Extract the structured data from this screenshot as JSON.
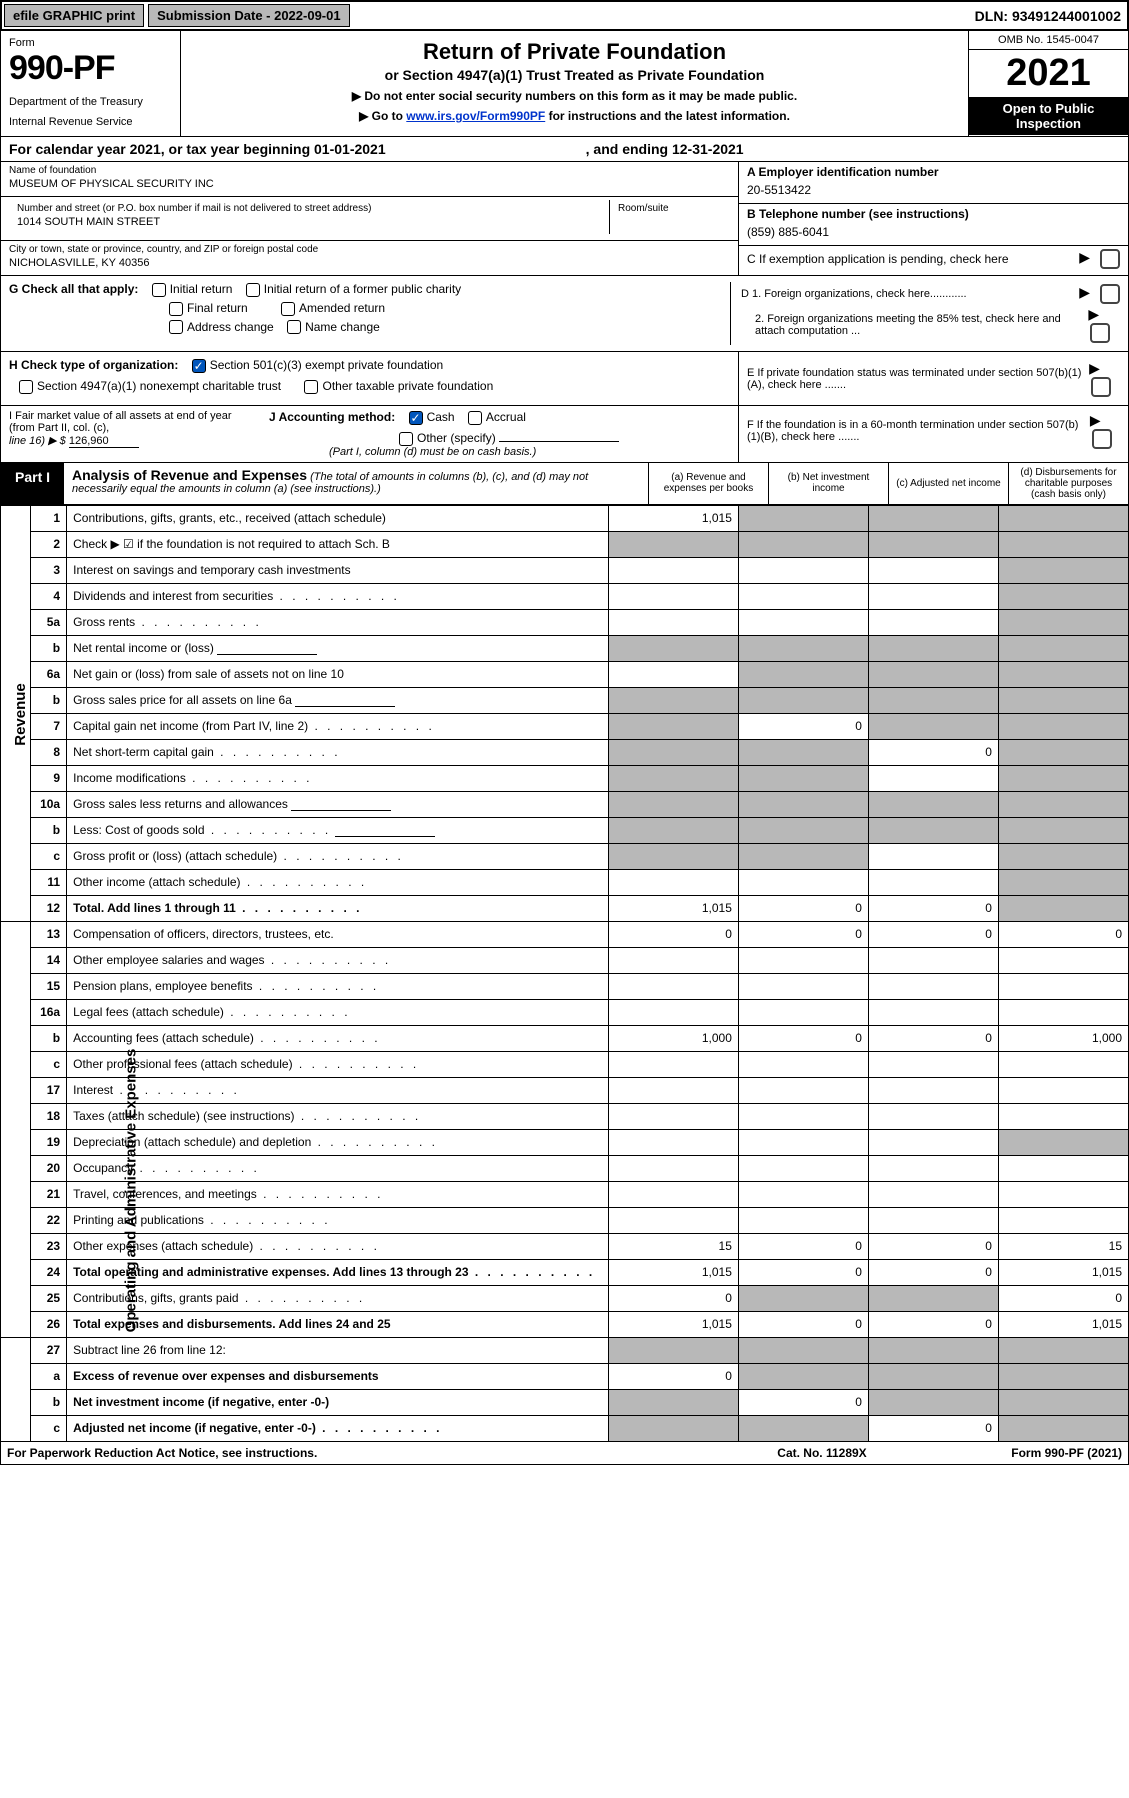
{
  "colors": {
    "black": "#000000",
    "white": "#ffffff",
    "gray_btn": "#b8b8b8",
    "link": "#0033cc",
    "check_blue": "#0055bb",
    "shaded": "#b8b8b8"
  },
  "topbar": {
    "efile": "efile GRAPHIC print",
    "submission_label": "Submission Date - 2022-09-01",
    "dln": "DLN: 93491244001002"
  },
  "header": {
    "form_word": "Form",
    "form_no": "990-PF",
    "dept1": "Department of the Treasury",
    "dept2": "Internal Revenue Service",
    "title": "Return of Private Foundation",
    "subtitle": "or Section 4947(a)(1) Trust Treated as Private Foundation",
    "instr1": "▶ Do not enter social security numbers on this form as it may be made public.",
    "instr2_pre": "▶ Go to ",
    "instr2_link": "www.irs.gov/Form990PF",
    "instr2_post": " for instructions and the latest information.",
    "omb": "OMB No. 1545-0047",
    "year": "2021",
    "open1": "Open to Public",
    "open2": "Inspection"
  },
  "tax_year": {
    "pre": "For calendar year 2021, or tax year beginning 01-01-2021",
    "mid": ", and ending 12-31-2021"
  },
  "entity": {
    "name_label": "Name of foundation",
    "name": "MUSEUM OF PHYSICAL SECURITY INC",
    "addr_label": "Number and street (or P.O. box number if mail is not delivered to street address)",
    "addr": "1014 SOUTH MAIN STREET",
    "room_label": "Room/suite",
    "city_label": "City or town, state or province, country, and ZIP or foreign postal code",
    "city": "NICHOLASVILLE, KY  40356",
    "a_label": "A Employer identification number",
    "a_val": "20-5513422",
    "b_label": "B Telephone number (see instructions)",
    "b_val": "(859) 885-6041",
    "c_label": "C If exemption application is pending, check here"
  },
  "g": {
    "label": "G Check all that apply:",
    "opts": [
      "Initial return",
      "Initial return of a former public charity",
      "Final return",
      "Amended return",
      "Address change",
      "Name change"
    ]
  },
  "d": {
    "d1": "D 1. Foreign organizations, check here............",
    "d2": "2. Foreign organizations meeting the 85% test, check here and attach computation ..."
  },
  "h": {
    "label": "H Check type of organization:",
    "opt1": "Section 501(c)(3) exempt private foundation",
    "opt2": "Section 4947(a)(1) nonexempt charitable trust",
    "opt3": "Other taxable private foundation"
  },
  "e": {
    "text": "E  If private foundation status was terminated under section 507(b)(1)(A), check here ......."
  },
  "i": {
    "label": "I Fair market value of all assets at end of year (from Part II, col. (c),",
    "line16": "line 16) ▶ $",
    "val": "126,960"
  },
  "j": {
    "label": "J Accounting method:",
    "cash": "Cash",
    "accrual": "Accrual",
    "other": "Other (specify)",
    "note": "(Part I, column (d) must be on cash basis.)"
  },
  "f": {
    "text": "F  If the foundation is in a 60-month termination under section 507(b)(1)(B), check here ......."
  },
  "part1": {
    "label": "Part I",
    "title": "Analysis of Revenue and Expenses",
    "note": " (The total of amounts in columns (b), (c), and (d) may not necessarily equal the amounts in column (a) (see instructions).)",
    "col_a": "(a)  Revenue and expenses per books",
    "col_b": "(b)  Net investment income",
    "col_c": "(c)  Adjusted net income",
    "col_d": "(d)  Disbursements for charitable purposes (cash basis only)"
  },
  "vlabels": {
    "revenue": "Revenue",
    "expenses": "Operating and Administrative Expenses"
  },
  "rows": [
    {
      "n": "1",
      "desc": "Contributions, gifts, grants, etc., received (attach schedule)",
      "a": "1,015",
      "b": "shade",
      "c": "shade",
      "d": "shade"
    },
    {
      "n": "2",
      "desc": "Check ▶ ☑ if the foundation is not required to attach Sch. B",
      "a": "shade",
      "b": "shade",
      "c": "shade",
      "d": "shade",
      "bold_not": true
    },
    {
      "n": "3",
      "desc": "Interest on savings and temporary cash investments",
      "a": "",
      "b": "",
      "c": "",
      "d": "shade"
    },
    {
      "n": "4",
      "desc": "Dividends and interest from securities",
      "a": "",
      "b": "",
      "c": "",
      "d": "shade",
      "dots": true
    },
    {
      "n": "5a",
      "desc": "Gross rents",
      "a": "",
      "b": "",
      "c": "",
      "d": "shade",
      "dots": true
    },
    {
      "n": "b",
      "desc": "Net rental income or (loss)",
      "a": "shade",
      "b": "shade",
      "c": "shade",
      "d": "shade",
      "inline_blank": true
    },
    {
      "n": "6a",
      "desc": "Net gain or (loss) from sale of assets not on line 10",
      "a": "",
      "b": "shade",
      "c": "shade",
      "d": "shade"
    },
    {
      "n": "b",
      "desc": "Gross sales price for all assets on line 6a",
      "a": "shade",
      "b": "shade",
      "c": "shade",
      "d": "shade",
      "inline_blank": true
    },
    {
      "n": "7",
      "desc": "Capital gain net income (from Part IV, line 2)",
      "a": "shade",
      "b": "0",
      "c": "shade",
      "d": "shade",
      "dots": true
    },
    {
      "n": "8",
      "desc": "Net short-term capital gain",
      "a": "shade",
      "b": "shade",
      "c": "0",
      "d": "shade",
      "dots": true
    },
    {
      "n": "9",
      "desc": "Income modifications",
      "a": "shade",
      "b": "shade",
      "c": "",
      "d": "shade",
      "dots": true
    },
    {
      "n": "10a",
      "desc": "Gross sales less returns and allowances",
      "a": "shade",
      "b": "shade",
      "c": "shade",
      "d": "shade",
      "inline_blank": true
    },
    {
      "n": "b",
      "desc": "Less: Cost of goods sold",
      "a": "shade",
      "b": "shade",
      "c": "shade",
      "d": "shade",
      "dots": true,
      "inline_blank": true
    },
    {
      "n": "c",
      "desc": "Gross profit or (loss) (attach schedule)",
      "a": "shade",
      "b": "shade",
      "c": "",
      "d": "shade",
      "dots": true
    },
    {
      "n": "11",
      "desc": "Other income (attach schedule)",
      "a": "",
      "b": "",
      "c": "",
      "d": "shade",
      "dots": true
    },
    {
      "n": "12",
      "desc": "Total. Add lines 1 through 11",
      "a": "1,015",
      "b": "0",
      "c": "0",
      "d": "shade",
      "bold": true,
      "dots": true
    },
    {
      "n": "13",
      "desc": "Compensation of officers, directors, trustees, etc.",
      "a": "0",
      "b": "0",
      "c": "0",
      "d": "0"
    },
    {
      "n": "14",
      "desc": "Other employee salaries and wages",
      "a": "",
      "b": "",
      "c": "",
      "d": "",
      "dots": true
    },
    {
      "n": "15",
      "desc": "Pension plans, employee benefits",
      "a": "",
      "b": "",
      "c": "",
      "d": "",
      "dots": true
    },
    {
      "n": "16a",
      "desc": "Legal fees (attach schedule)",
      "a": "",
      "b": "",
      "c": "",
      "d": "",
      "dots": true
    },
    {
      "n": "b",
      "desc": "Accounting fees (attach schedule)",
      "a": "1,000",
      "b": "0",
      "c": "0",
      "d": "1,000",
      "dots": true
    },
    {
      "n": "c",
      "desc": "Other professional fees (attach schedule)",
      "a": "",
      "b": "",
      "c": "",
      "d": "",
      "dots": true
    },
    {
      "n": "17",
      "desc": "Interest",
      "a": "",
      "b": "",
      "c": "",
      "d": "",
      "dots": true
    },
    {
      "n": "18",
      "desc": "Taxes (attach schedule) (see instructions)",
      "a": "",
      "b": "",
      "c": "",
      "d": "",
      "dots": true
    },
    {
      "n": "19",
      "desc": "Depreciation (attach schedule) and depletion",
      "a": "",
      "b": "",
      "c": "",
      "d": "shade",
      "dots": true
    },
    {
      "n": "20",
      "desc": "Occupancy",
      "a": "",
      "b": "",
      "c": "",
      "d": "",
      "dots": true
    },
    {
      "n": "21",
      "desc": "Travel, conferences, and meetings",
      "a": "",
      "b": "",
      "c": "",
      "d": "",
      "dots": true
    },
    {
      "n": "22",
      "desc": "Printing and publications",
      "a": "",
      "b": "",
      "c": "",
      "d": "",
      "dots": true
    },
    {
      "n": "23",
      "desc": "Other expenses (attach schedule)",
      "a": "15",
      "b": "0",
      "c": "0",
      "d": "15",
      "dots": true
    },
    {
      "n": "24",
      "desc": "Total operating and administrative expenses. Add lines 13 through 23",
      "a": "1,015",
      "b": "0",
      "c": "0",
      "d": "1,015",
      "bold": true,
      "dots": true,
      "two_line": true
    },
    {
      "n": "25",
      "desc": "Contributions, gifts, grants paid",
      "a": "0",
      "b": "shade",
      "c": "shade",
      "d": "0",
      "dots": true
    },
    {
      "n": "26",
      "desc": "Total expenses and disbursements. Add lines 24 and 25",
      "a": "1,015",
      "b": "0",
      "c": "0",
      "d": "1,015",
      "bold": true,
      "two_line": true
    },
    {
      "n": "27",
      "desc": "Subtract line 26 from line 12:",
      "a": "shade",
      "b": "shade",
      "c": "shade",
      "d": "shade"
    },
    {
      "n": "a",
      "desc": "Excess of revenue over expenses and disbursements",
      "a": "0",
      "b": "shade",
      "c": "shade",
      "d": "shade",
      "bold": true
    },
    {
      "n": "b",
      "desc": "Net investment income (if negative, enter -0-)",
      "a": "shade",
      "b": "0",
      "c": "shade",
      "d": "shade",
      "bold": true
    },
    {
      "n": "c",
      "desc": "Adjusted net income (if negative, enter -0-)",
      "a": "shade",
      "b": "shade",
      "c": "0",
      "d": "shade",
      "bold": true,
      "dots": true
    }
  ],
  "footer": {
    "left": "For Paperwork Reduction Act Notice, see instructions.",
    "mid": "Cat. No. 11289X",
    "right": "Form 990-PF (2021)"
  }
}
